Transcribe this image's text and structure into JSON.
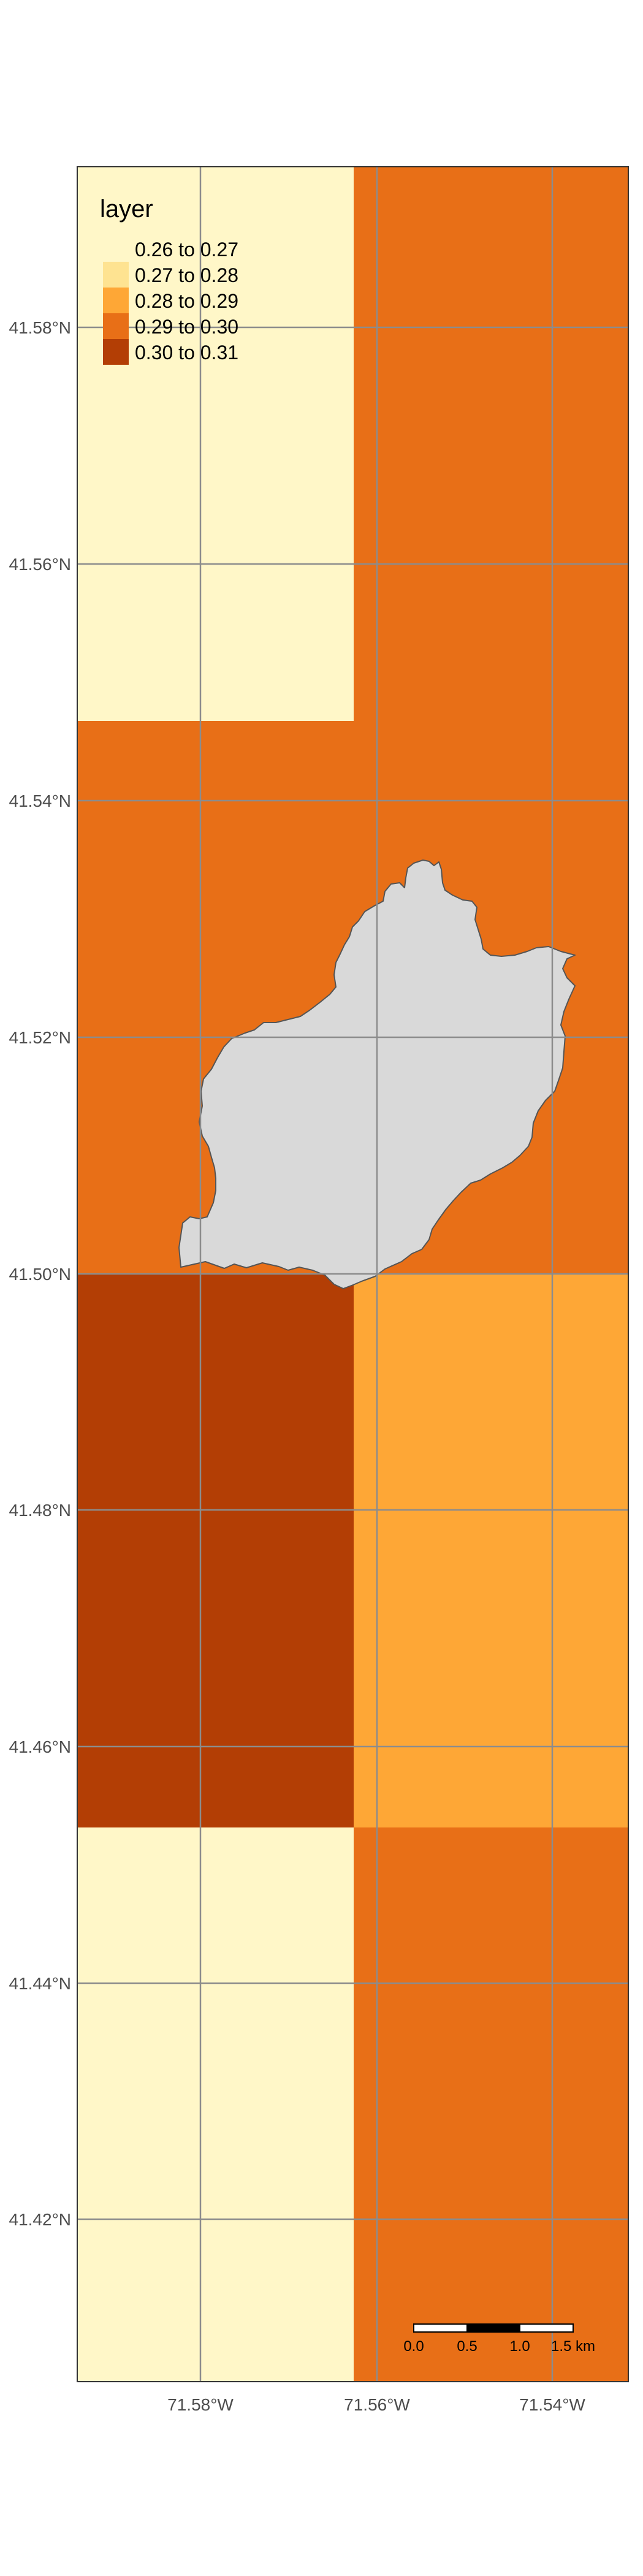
{
  "legend": {
    "title": "layer",
    "items": [
      {
        "label": "0.26 to 0.27",
        "color": "#fff7c8"
      },
      {
        "label": "0.27 to 0.28",
        "color": "#fee391"
      },
      {
        "label": "0.28 to 0.29",
        "color": "#fea736"
      },
      {
        "label": "0.29 to 0.30",
        "color": "#e86f17"
      },
      {
        "label": "0.30 to 0.31",
        "color": "#b33e05"
      }
    ]
  },
  "axes": {
    "y_ticks": [
      "41.58°N",
      "41.56°N",
      "41.54°N",
      "41.52°N",
      "41.50°N",
      "41.48°N",
      "41.46°N",
      "41.44°N",
      "41.42°N"
    ],
    "x_ticks": [
      "71.58°W",
      "71.56°W",
      "71.54°W"
    ]
  },
  "scale_bar": {
    "labels": [
      "0.0",
      "0.5",
      "1.0",
      "1.5 km"
    ]
  },
  "colors": {
    "graticule": "#8c8c8c",
    "lake_fill": "#d9d9d9",
    "lake_stroke": "#555555",
    "frame": "#333333"
  }
}
